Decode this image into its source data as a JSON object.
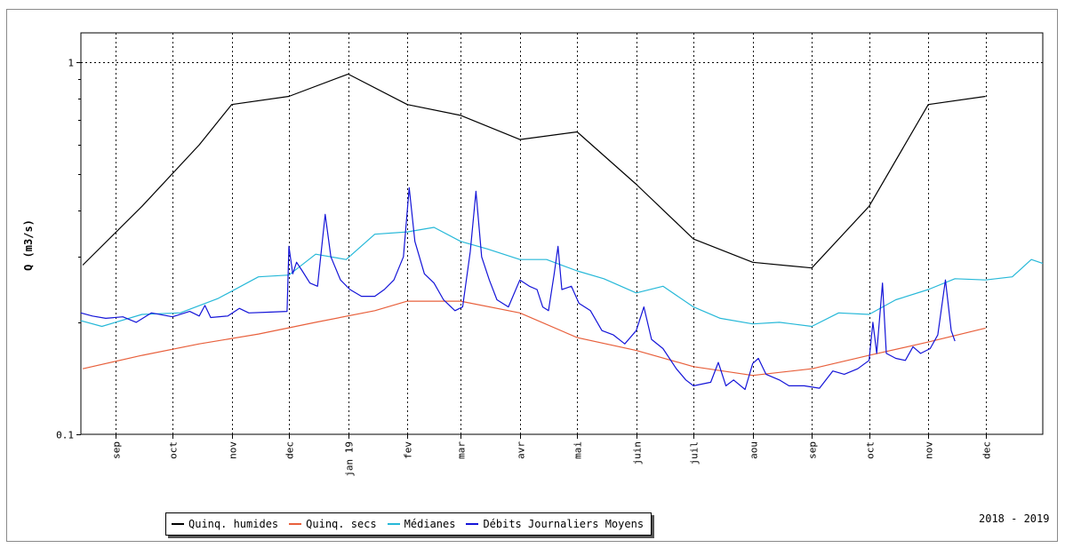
{
  "chart_data": {
    "type": "line",
    "ylabel": "Q (m3/s)",
    "yscale": "log",
    "ylim": [
      0.1,
      1.2
    ],
    "yticks": [
      {
        "value": 1,
        "label": "1"
      },
      {
        "value": 0.1,
        "label": "0.1"
      }
    ],
    "xlim": [
      "2018-08-14",
      "2019-12-31"
    ],
    "xticks": [
      {
        "date": "2018-09-01",
        "label": "sep"
      },
      {
        "date": "2018-10-01",
        "label": "oct"
      },
      {
        "date": "2018-11-01",
        "label": "nov"
      },
      {
        "date": "2018-12-01",
        "label": "dec"
      },
      {
        "date": "2019-01-01",
        "label": "jan 19"
      },
      {
        "date": "2019-02-01",
        "label": "fev"
      },
      {
        "date": "2019-03-01",
        "label": "mar"
      },
      {
        "date": "2019-04-01",
        "label": "avr"
      },
      {
        "date": "2019-05-01",
        "label": "mai"
      },
      {
        "date": "2019-06-01",
        "label": "juin"
      },
      {
        "date": "2019-07-01",
        "label": "juil"
      },
      {
        "date": "2019-08-01",
        "label": "aou"
      },
      {
        "date": "2019-09-01",
        "label": "sep"
      },
      {
        "date": "2019-10-01",
        "label": "oct"
      },
      {
        "date": "2019-11-01",
        "label": "nov"
      },
      {
        "date": "2019-12-01",
        "label": "dec"
      }
    ],
    "period_label": "2018 - 2019",
    "grid": true,
    "legend_position": "bottom",
    "series": [
      {
        "name": "Quinq. humides",
        "color": "#000000",
        "points": [
          [
            "2018-08-15",
            0.285
          ],
          [
            "2018-09-15",
            0.41
          ],
          [
            "2018-10-15",
            0.6
          ],
          [
            "2018-11-01",
            0.77
          ],
          [
            "2018-12-01",
            0.81
          ],
          [
            "2019-01-01",
            0.93
          ],
          [
            "2019-02-01",
            0.77
          ],
          [
            "2019-03-01",
            0.72
          ],
          [
            "2019-04-01",
            0.62
          ],
          [
            "2019-05-01",
            0.65
          ],
          [
            "2019-06-01",
            0.47
          ],
          [
            "2019-07-01",
            0.335
          ],
          [
            "2019-08-01",
            0.29
          ],
          [
            "2019-09-01",
            0.28
          ],
          [
            "2019-10-01",
            0.41
          ],
          [
            "2019-11-01",
            0.77
          ],
          [
            "2019-12-01",
            0.81
          ]
        ]
      },
      {
        "name": "Quinq. secs",
        "color": "#e8603c",
        "points": [
          [
            "2018-08-15",
            0.15
          ],
          [
            "2018-09-15",
            0.163
          ],
          [
            "2018-10-15",
            0.175
          ],
          [
            "2018-11-15",
            0.186
          ],
          [
            "2018-12-15",
            0.2
          ],
          [
            "2019-01-15",
            0.215
          ],
          [
            "2019-02-01",
            0.228
          ],
          [
            "2019-03-01",
            0.228
          ],
          [
            "2019-04-01",
            0.212
          ],
          [
            "2019-05-01",
            0.182
          ],
          [
            "2019-06-01",
            0.168
          ],
          [
            "2019-07-01",
            0.152
          ],
          [
            "2019-08-01",
            0.144
          ],
          [
            "2019-09-01",
            0.15
          ],
          [
            "2019-10-01",
            0.163
          ],
          [
            "2019-11-01",
            0.177
          ],
          [
            "2019-12-01",
            0.193
          ]
        ]
      },
      {
        "name": "Médianes",
        "color": "#26b8d8",
        "points": [
          [
            "2018-08-14",
            0.202
          ],
          [
            "2018-08-25",
            0.195
          ],
          [
            "2018-09-15",
            0.21
          ],
          [
            "2018-10-05",
            0.212
          ],
          [
            "2018-10-25",
            0.232
          ],
          [
            "2018-11-15",
            0.265
          ],
          [
            "2018-12-01",
            0.268
          ],
          [
            "2018-12-15",
            0.305
          ],
          [
            "2018-12-31",
            0.295
          ],
          [
            "2019-01-15",
            0.345
          ],
          [
            "2019-02-01",
            0.35
          ],
          [
            "2019-02-15",
            0.36
          ],
          [
            "2019-03-01",
            0.33
          ],
          [
            "2019-03-15",
            0.315
          ],
          [
            "2019-04-01",
            0.295
          ],
          [
            "2019-04-15",
            0.295
          ],
          [
            "2019-05-01",
            0.275
          ],
          [
            "2019-05-15",
            0.262
          ],
          [
            "2019-06-01",
            0.24
          ],
          [
            "2019-06-15",
            0.25
          ],
          [
            "2019-07-01",
            0.22
          ],
          [
            "2019-07-15",
            0.205
          ],
          [
            "2019-08-01",
            0.198
          ],
          [
            "2019-08-15",
            0.2
          ],
          [
            "2019-09-01",
            0.195
          ],
          [
            "2019-09-15",
            0.212
          ],
          [
            "2019-10-01",
            0.21
          ],
          [
            "2019-10-15",
            0.23
          ],
          [
            "2019-11-01",
            0.245
          ],
          [
            "2019-11-15",
            0.262
          ],
          [
            "2019-12-01",
            0.26
          ],
          [
            "2019-12-15",
            0.265
          ],
          [
            "2019-12-25",
            0.295
          ],
          [
            "2019-12-31",
            0.288
          ]
        ]
      },
      {
        "name": "Débits Journaliers Moyens",
        "color": "#1414d8",
        "points": [
          [
            "2018-08-14",
            0.212
          ],
          [
            "2018-08-20",
            0.208
          ],
          [
            "2018-08-27",
            0.205
          ],
          [
            "2018-09-05",
            0.207
          ],
          [
            "2018-09-12",
            0.2
          ],
          [
            "2018-09-20",
            0.212
          ],
          [
            "2018-10-01",
            0.207
          ],
          [
            "2018-10-10",
            0.214
          ],
          [
            "2018-10-15",
            0.208
          ],
          [
            "2018-10-18",
            0.222
          ],
          [
            "2018-10-21",
            0.206
          ],
          [
            "2018-10-30",
            0.208
          ],
          [
            "2018-11-05",
            0.218
          ],
          [
            "2018-11-10",
            0.212
          ],
          [
            "2018-11-20",
            0.213
          ],
          [
            "2018-11-30",
            0.214
          ],
          [
            "2018-12-01",
            0.32
          ],
          [
            "2018-12-03",
            0.27
          ],
          [
            "2018-12-05",
            0.29
          ],
          [
            "2018-12-08",
            0.275
          ],
          [
            "2018-12-12",
            0.255
          ],
          [
            "2018-12-16",
            0.25
          ],
          [
            "2018-12-20",
            0.39
          ],
          [
            "2018-12-23",
            0.3
          ],
          [
            "2018-12-28",
            0.26
          ],
          [
            "2019-01-02",
            0.245
          ],
          [
            "2019-01-08",
            0.235
          ],
          [
            "2019-01-15",
            0.235
          ],
          [
            "2019-01-20",
            0.245
          ],
          [
            "2019-01-25",
            0.26
          ],
          [
            "2019-01-30",
            0.3
          ],
          [
            "2019-02-02",
            0.46
          ],
          [
            "2019-02-05",
            0.33
          ],
          [
            "2019-02-10",
            0.27
          ],
          [
            "2019-02-15",
            0.255
          ],
          [
            "2019-02-20",
            0.23
          ],
          [
            "2019-02-26",
            0.215
          ],
          [
            "2019-03-02",
            0.22
          ],
          [
            "2019-03-06",
            0.31
          ],
          [
            "2019-03-09",
            0.45
          ],
          [
            "2019-03-12",
            0.3
          ],
          [
            "2019-03-16",
            0.26
          ],
          [
            "2019-03-20",
            0.23
          ],
          [
            "2019-03-26",
            0.22
          ],
          [
            "2019-04-01",
            0.26
          ],
          [
            "2019-04-06",
            0.25
          ],
          [
            "2019-04-10",
            0.245
          ],
          [
            "2019-04-13",
            0.22
          ],
          [
            "2019-04-16",
            0.215
          ],
          [
            "2019-04-19",
            0.27
          ],
          [
            "2019-04-21",
            0.32
          ],
          [
            "2019-04-23",
            0.245
          ],
          [
            "2019-04-28",
            0.25
          ],
          [
            "2019-05-02",
            0.225
          ],
          [
            "2019-05-08",
            0.215
          ],
          [
            "2019-05-14",
            0.19
          ],
          [
            "2019-05-20",
            0.185
          ],
          [
            "2019-05-26",
            0.175
          ],
          [
            "2019-06-01",
            0.19
          ],
          [
            "2019-06-05",
            0.22
          ],
          [
            "2019-06-09",
            0.18
          ],
          [
            "2019-06-15",
            0.17
          ],
          [
            "2019-06-22",
            0.15
          ],
          [
            "2019-06-27",
            0.14
          ],
          [
            "2019-07-01",
            0.135
          ],
          [
            "2019-07-10",
            0.138
          ],
          [
            "2019-07-14",
            0.156
          ],
          [
            "2019-07-18",
            0.135
          ],
          [
            "2019-07-22",
            0.14
          ],
          [
            "2019-07-28",
            0.132
          ],
          [
            "2019-08-01",
            0.155
          ],
          [
            "2019-08-04",
            0.16
          ],
          [
            "2019-08-08",
            0.145
          ],
          [
            "2019-08-15",
            0.14
          ],
          [
            "2019-08-20",
            0.135
          ],
          [
            "2019-08-28",
            0.135
          ],
          [
            "2019-09-05",
            0.133
          ],
          [
            "2019-09-12",
            0.148
          ],
          [
            "2019-09-18",
            0.145
          ],
          [
            "2019-09-25",
            0.15
          ],
          [
            "2019-10-01",
            0.158
          ],
          [
            "2019-10-03",
            0.2
          ],
          [
            "2019-10-05",
            0.165
          ],
          [
            "2019-10-08",
            0.255
          ],
          [
            "2019-10-10",
            0.165
          ],
          [
            "2019-10-15",
            0.16
          ],
          [
            "2019-10-20",
            0.158
          ],
          [
            "2019-10-24",
            0.172
          ],
          [
            "2019-10-28",
            0.165
          ],
          [
            "2019-11-02",
            0.17
          ],
          [
            "2019-11-06",
            0.185
          ],
          [
            "2019-11-10",
            0.26
          ],
          [
            "2019-11-13",
            0.19
          ],
          [
            "2019-11-15",
            0.178
          ]
        ]
      }
    ]
  }
}
